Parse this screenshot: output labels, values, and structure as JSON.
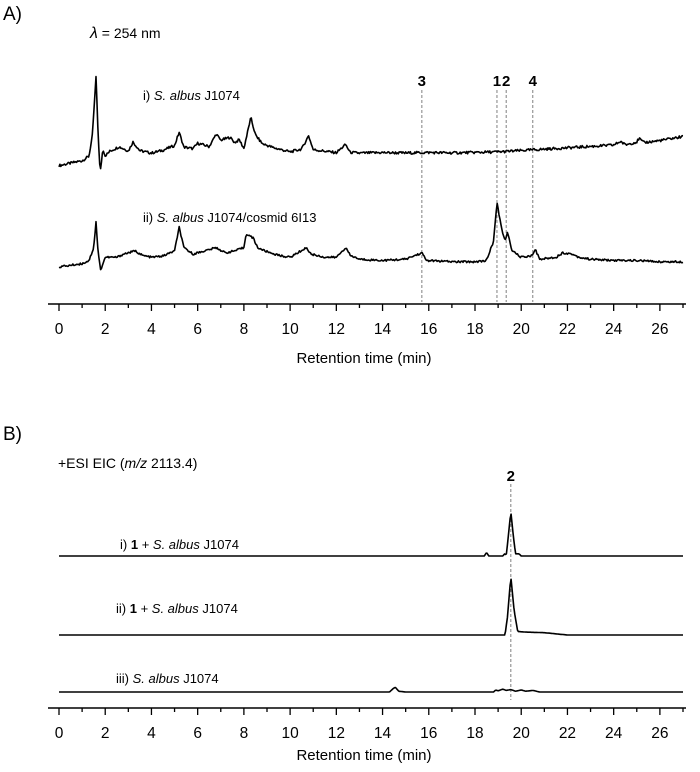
{
  "chart_data": [
    {
      "panel_label": "A)",
      "type": "line",
      "annotation": {
        "symbol": "λ",
        "text": " = 254 nm"
      },
      "xlabel": "Retention time (min)",
      "xlim": [
        0,
        27
      ],
      "xticks": [
        0,
        2,
        4,
        6,
        8,
        10,
        12,
        14,
        16,
        18,
        20,
        22,
        24,
        26
      ],
      "tick_labels": [
        "0",
        "2",
        "4",
        "6",
        "8",
        "10",
        "12",
        "14",
        "16",
        "18",
        "20",
        "22",
        "24",
        "26"
      ],
      "reference_lines": [
        {
          "label": "3",
          "x": 15.7
        },
        {
          "label": "1",
          "x": 18.95
        },
        {
          "label": "2",
          "x": 19.35
        },
        {
          "label": "4",
          "x": 20.5
        }
      ],
      "series": [
        {
          "label_parts": [
            {
              "text": "i) ",
              "style": "normal"
            },
            {
              "text": "S. albus",
              "style": "italic"
            },
            {
              "text": " J1074",
              "style": "normal"
            }
          ],
          "baseline": 0.05,
          "drift": 0.15,
          "noise": 0.015,
          "points": [
            [
              0,
              0
            ],
            [
              1.0,
              0.05
            ],
            [
              1.3,
              0.1
            ],
            [
              1.45,
              0.35
            ],
            [
              1.6,
              1.0
            ],
            [
              1.7,
              0.3
            ],
            [
              1.78,
              -0.1
            ],
            [
              1.9,
              0.18
            ],
            [
              2.0,
              0.1
            ],
            [
              2.2,
              0.15
            ],
            [
              2.6,
              0.2
            ],
            [
              3.0,
              0.15
            ],
            [
              3.2,
              0.25
            ],
            [
              3.5,
              0.15
            ],
            [
              4.0,
              0.12
            ],
            [
              4.5,
              0.15
            ],
            [
              5.0,
              0.2
            ],
            [
              5.2,
              0.35
            ],
            [
              5.4,
              0.18
            ],
            [
              5.8,
              0.16
            ],
            [
              6.0,
              0.22
            ],
            [
              6.5,
              0.18
            ],
            [
              6.8,
              0.32
            ],
            [
              7.0,
              0.25
            ],
            [
              7.4,
              0.28
            ],
            [
              7.6,
              0.22
            ],
            [
              7.8,
              0.25
            ],
            [
              8.0,
              0.15
            ],
            [
              8.3,
              0.5
            ],
            [
              8.5,
              0.3
            ],
            [
              8.8,
              0.2
            ],
            [
              9.3,
              0.15
            ],
            [
              10.0,
              0.1
            ],
            [
              10.5,
              0.13
            ],
            [
              10.8,
              0.28
            ],
            [
              11.0,
              0.12
            ],
            [
              11.5,
              0.1
            ],
            [
              12.0,
              0.08
            ],
            [
              12.4,
              0.17
            ],
            [
              12.6,
              0.08
            ],
            [
              13.0,
              0.07
            ],
            [
              14.0,
              0.07
            ],
            [
              15.0,
              0.06
            ],
            [
              16.0,
              0.06
            ],
            [
              17.0,
              0.05
            ],
            [
              18.0,
              0.05
            ],
            [
              19.0,
              0.05
            ],
            [
              20.0,
              0.06
            ],
            [
              21.0,
              0.07
            ],
            [
              22.0,
              0.08
            ],
            [
              23.0,
              0.09
            ],
            [
              24.0,
              0.1
            ],
            [
              24.3,
              0.14
            ],
            [
              24.5,
              0.1
            ],
            [
              25.0,
              0.13
            ],
            [
              25.1,
              0.17
            ],
            [
              25.3,
              0.12
            ],
            [
              26.0,
              0.14
            ],
            [
              27.0,
              0.18
            ]
          ]
        },
        {
          "label_parts": [
            {
              "text": "ii) ",
              "style": "normal"
            },
            {
              "text": "S. albus",
              "style": "italic"
            },
            {
              "text": " J1074/cosmid 6I13",
              "style": "normal"
            }
          ],
          "baseline": 0.08,
          "drift": 0.0,
          "noise": 0.015,
          "points": [
            [
              0,
              0
            ],
            [
              1.0,
              0.05
            ],
            [
              1.3,
              0.1
            ],
            [
              1.5,
              0.3
            ],
            [
              1.6,
              0.7
            ],
            [
              1.7,
              0.2
            ],
            [
              1.8,
              -0.05
            ],
            [
              2.0,
              0.15
            ],
            [
              2.5,
              0.15
            ],
            [
              2.8,
              0.2
            ],
            [
              3.3,
              0.25
            ],
            [
              3.6,
              0.18
            ],
            [
              4.0,
              0.15
            ],
            [
              4.5,
              0.17
            ],
            [
              5.0,
              0.25
            ],
            [
              5.2,
              0.62
            ],
            [
              5.4,
              0.3
            ],
            [
              5.8,
              0.2
            ],
            [
              6.3,
              0.25
            ],
            [
              6.8,
              0.3
            ],
            [
              7.2,
              0.22
            ],
            [
              7.6,
              0.25
            ],
            [
              8.0,
              0.3
            ],
            [
              8.1,
              0.52
            ],
            [
              8.4,
              0.45
            ],
            [
              8.6,
              0.3
            ],
            [
              8.9,
              0.25
            ],
            [
              9.5,
              0.18
            ],
            [
              10.0,
              0.15
            ],
            [
              10.7,
              0.3
            ],
            [
              10.9,
              0.2
            ],
            [
              11.5,
              0.15
            ],
            [
              12.0,
              0.15
            ],
            [
              12.4,
              0.3
            ],
            [
              12.6,
              0.18
            ],
            [
              13.0,
              0.12
            ],
            [
              14.0,
              0.1
            ],
            [
              15.0,
              0.12
            ],
            [
              15.7,
              0.22
            ],
            [
              15.9,
              0.1
            ],
            [
              17.0,
              0.08
            ],
            [
              18.0,
              0.08
            ],
            [
              18.5,
              0.1
            ],
            [
              18.8,
              0.4
            ],
            [
              18.95,
              1.0
            ],
            [
              19.15,
              0.6
            ],
            [
              19.3,
              0.4
            ],
            [
              19.4,
              0.55
            ],
            [
              19.6,
              0.25
            ],
            [
              20.0,
              0.15
            ],
            [
              20.5,
              0.18
            ],
            [
              20.6,
              0.28
            ],
            [
              20.8,
              0.12
            ],
            [
              21.5,
              0.15
            ],
            [
              21.8,
              0.22
            ],
            [
              22.2,
              0.2
            ],
            [
              22.5,
              0.15
            ],
            [
              23.0,
              0.12
            ],
            [
              24.0,
              0.1
            ],
            [
              25.0,
              0.1
            ],
            [
              26.0,
              0.08
            ],
            [
              27.0,
              0.08
            ]
          ]
        }
      ]
    },
    {
      "panel_label": "B)",
      "type": "line",
      "annotation_parts": [
        {
          "text": "+ESI EIC (",
          "style": "normal"
        },
        {
          "text": "m/z",
          "style": "italic"
        },
        {
          "text": " 2113.4)",
          "style": "normal"
        }
      ],
      "xlabel": "Retention time (min)",
      "xlim": [
        0,
        27
      ],
      "xticks": [
        0,
        2,
        4,
        6,
        8,
        10,
        12,
        14,
        16,
        18,
        20,
        22,
        24,
        26
      ],
      "tick_labels": [
        "0",
        "2",
        "4",
        "6",
        "8",
        "10",
        "12",
        "14",
        "16",
        "18",
        "20",
        "22",
        "24",
        "26"
      ],
      "reference_lines": [
        {
          "label": "2",
          "x": 19.55
        }
      ],
      "series": [
        {
          "label_parts": [
            {
              "text": "i) ",
              "style": "normal"
            },
            {
              "text": "1",
              "style": "bold"
            },
            {
              "text": " + ",
              "style": "normal"
            },
            {
              "text": "S. albus",
              "style": "italic"
            },
            {
              "text": " J1074",
              "style": "normal"
            }
          ],
          "baseline": 0.0,
          "drift": 0.0,
          "noise": 0.0,
          "points": [
            [
              0,
              0
            ],
            [
              18.4,
              0
            ],
            [
              18.5,
              0.08
            ],
            [
              18.6,
              0
            ],
            [
              19.2,
              0
            ],
            [
              19.3,
              0.06
            ],
            [
              19.35,
              0
            ],
            [
              19.45,
              0.5
            ],
            [
              19.55,
              1.0
            ],
            [
              19.65,
              0.5
            ],
            [
              19.75,
              0.05
            ],
            [
              19.9,
              0.05
            ],
            [
              20.0,
              0
            ],
            [
              27.0,
              0
            ]
          ]
        },
        {
          "label_parts": [
            {
              "text": "ii) ",
              "style": "normal"
            },
            {
              "text": "1",
              "style": "bold"
            },
            {
              "text": " + ",
              "style": "normal"
            },
            {
              "text": "S. albus",
              "style": "italic"
            },
            {
              "text": " J1074",
              "style": "normal"
            }
          ],
          "baseline": 0.0,
          "drift": 0.0,
          "noise": 0.0,
          "points": [
            [
              0,
              0
            ],
            [
              19.3,
              0
            ],
            [
              19.4,
              0.3
            ],
            [
              19.55,
              1.0
            ],
            [
              19.7,
              0.4
            ],
            [
              19.85,
              0.06
            ],
            [
              20.2,
              0.05
            ],
            [
              21.0,
              0.04
            ],
            [
              21.5,
              0.02
            ],
            [
              22.0,
              0
            ],
            [
              27.0,
              0
            ]
          ]
        },
        {
          "label_parts": [
            {
              "text": "iii) ",
              "style": "normal"
            },
            {
              "text": "S. albus",
              "style": "italic"
            },
            {
              "text": " J1074",
              "style": "normal"
            }
          ],
          "baseline": 0.0,
          "drift": 0.0,
          "noise": 0.0,
          "points": [
            [
              0,
              0
            ],
            [
              14.3,
              0
            ],
            [
              14.45,
              0.08
            ],
            [
              14.55,
              0.12
            ],
            [
              14.7,
              0.02
            ],
            [
              15.0,
              0
            ],
            [
              18.8,
              0
            ],
            [
              18.9,
              0.05
            ],
            [
              19.0,
              0.03
            ],
            [
              19.2,
              0.07
            ],
            [
              19.35,
              0.04
            ],
            [
              19.55,
              0.06
            ],
            [
              19.75,
              0.02
            ],
            [
              20.0,
              0.05
            ],
            [
              20.2,
              0.02
            ],
            [
              20.5,
              0.04
            ],
            [
              20.8,
              0
            ],
            [
              27.0,
              0
            ]
          ]
        }
      ]
    }
  ]
}
